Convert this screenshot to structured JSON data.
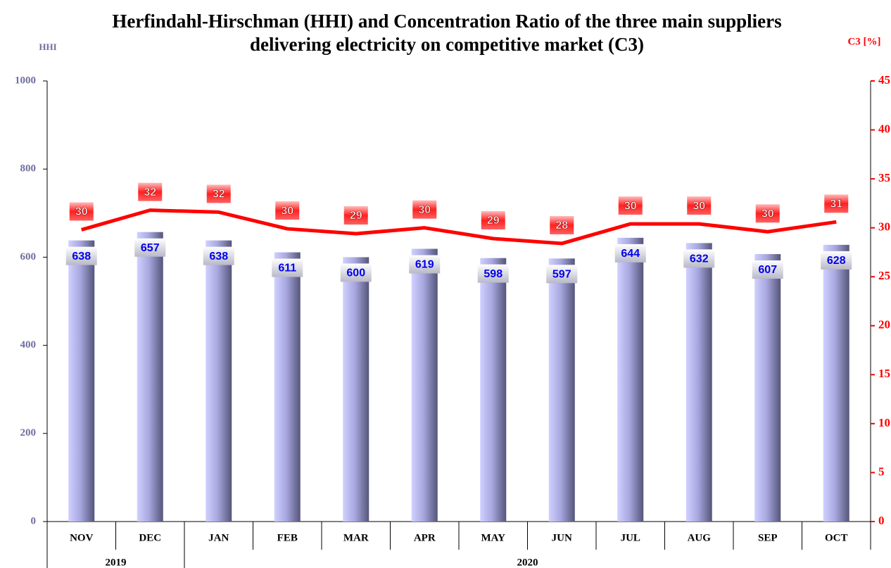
{
  "chart_data": {
    "type": "bar_line",
    "title": "Herfindahl-Hirschman (HHI) and Concentration Ratio of the three main suppliers delivering electricity on competitive market (C3)",
    "y_label": "HHI",
    "y2_label": "C3 [%]",
    "categories": [
      "NOV",
      "DEC",
      "JAN",
      "FEB",
      "MAR",
      "APR",
      "MAY",
      "JUN",
      "JUL",
      "AUG",
      "SEP",
      "OCT"
    ],
    "group_labels": [
      "2019",
      "2020"
    ],
    "group_sizes": [
      2,
      10
    ],
    "series": [
      {
        "name": "HHI",
        "type": "bar",
        "color": "#8c8cc8",
        "values": [
          638,
          657,
          638,
          611,
          600,
          619,
          598,
          597,
          644,
          632,
          607,
          628
        ]
      },
      {
        "name": "C3",
        "type": "line",
        "axis": "y2",
        "color": "#ff0000",
        "values": [
          29.8,
          31.8,
          31.6,
          29.9,
          29.4,
          30.0,
          28.9,
          28.4,
          30.4,
          30.4,
          29.6,
          30.6
        ],
        "value_labels": [
          "30",
          "32",
          "32",
          "30",
          "29",
          "30",
          "29",
          "28",
          "30",
          "30",
          "30",
          "31"
        ]
      }
    ],
    "ylim": [
      0,
      1000
    ],
    "yticks": [
      0,
      200,
      400,
      600,
      800,
      1000
    ],
    "y2lim": [
      0,
      45
    ],
    "y2ticks": [
      0,
      5,
      10,
      15,
      20,
      25,
      30,
      35,
      40,
      45
    ]
  }
}
